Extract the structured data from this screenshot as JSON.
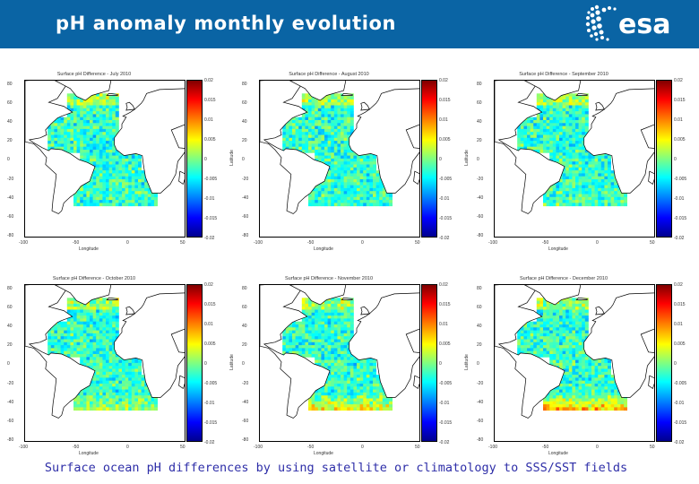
{
  "header": {
    "title": "pH anomaly monthly evolution",
    "logo_text": "esa",
    "background": "#0a64a4"
  },
  "caption": "Surface ocean pH differences by using satellite or climatology to SSS/SST  fields",
  "chart_data": [
    {
      "type": "heatmap",
      "title": "Surface pH Difference - July 2010",
      "xlabel": "Longitude",
      "ylabel": "Latitude",
      "xticks": [
        "-100",
        "-50",
        "0",
        "50"
      ],
      "yticks": [
        "80",
        "60",
        "40",
        "20",
        "0",
        "-20",
        "-40",
        "-60",
        "-80"
      ],
      "colorbar": {
        "ticks": [
          "0.02",
          "0.015",
          "0.01",
          "0.005",
          "0",
          "-0.005",
          "-0.01",
          "-0.015",
          "-0.02"
        ],
        "range": [
          -0.02,
          0.02
        ],
        "colormap": "jet"
      },
      "mean_anomaly": -0.003,
      "southern_positive_anomaly": 0.0
    },
    {
      "type": "heatmap",
      "title": "Surface pH Difference - August 2010",
      "xlabel": "Longitude",
      "ylabel": "Latitude",
      "xticks": [
        "-100",
        "-50",
        "0",
        "50"
      ],
      "yticks": [
        "80",
        "60",
        "40",
        "20",
        "0",
        "-20",
        "-40",
        "-60",
        "-80"
      ],
      "colorbar": {
        "ticks": [
          "0.02",
          "0.015",
          "0.01",
          "0.005",
          "0",
          "-0.005",
          "-0.01",
          "-0.015",
          "-0.02"
        ],
        "range": [
          -0.02,
          0.02
        ],
        "colormap": "jet"
      },
      "mean_anomaly": -0.003,
      "southern_positive_anomaly": 0.0
    },
    {
      "type": "heatmap",
      "title": "Surface pH Difference - September 2010",
      "xlabel": "Longitude",
      "ylabel": "Latitude",
      "xticks": [
        "-100",
        "-50",
        "0",
        "50"
      ],
      "yticks": [
        "80",
        "60",
        "40",
        "20",
        "0",
        "-20",
        "-40",
        "-60",
        "-80"
      ],
      "colorbar": {
        "ticks": [
          "0.02",
          "0.015",
          "0.01",
          "0.005",
          "0",
          "-0.005",
          "-0.01",
          "-0.015",
          "-0.02"
        ],
        "range": [
          -0.02,
          0.02
        ],
        "colormap": "jet"
      },
      "mean_anomaly": -0.003,
      "southern_positive_anomaly": 0.001
    },
    {
      "type": "heatmap",
      "title": "Surface pH Difference - October 2010",
      "xlabel": "Longitude",
      "ylabel": "Latitude",
      "xticks": [
        "-100",
        "-50",
        "0",
        "50"
      ],
      "yticks": [
        "80",
        "60",
        "40",
        "20",
        "0",
        "-20",
        "-40",
        "-60",
        "-80"
      ],
      "colorbar": {
        "ticks": [
          "0.02",
          "0.015",
          "0.01",
          "0.005",
          "0",
          "-0.005",
          "-0.01",
          "-0.015",
          "-0.02"
        ],
        "range": [
          -0.02,
          0.02
        ],
        "colormap": "jet"
      },
      "mean_anomaly": -0.003,
      "southern_positive_anomaly": 0.005
    },
    {
      "type": "heatmap",
      "title": "Surface pH Difference - November 2010",
      "xlabel": "Longitude",
      "ylabel": "Latitude",
      "xticks": [
        "-100",
        "-50",
        "0",
        "50"
      ],
      "yticks": [
        "80",
        "60",
        "40",
        "20",
        "0",
        "-20",
        "-40",
        "-60",
        "-80"
      ],
      "colorbar": {
        "ticks": [
          "0.02",
          "0.015",
          "0.01",
          "0.005",
          "0",
          "-0.005",
          "-0.01",
          "-0.015",
          "-0.02"
        ],
        "range": [
          -0.02,
          0.02
        ],
        "colormap": "jet"
      },
      "mean_anomaly": -0.003,
      "southern_positive_anomaly": 0.009
    },
    {
      "type": "heatmap",
      "title": "Surface pH Difference - December 2010",
      "xlabel": "Longitude",
      "ylabel": "Latitude",
      "xticks": [
        "-100",
        "-50",
        "0",
        "50"
      ],
      "yticks": [
        "80",
        "60",
        "40",
        "20",
        "0",
        "-20",
        "-40",
        "-60",
        "-80"
      ],
      "colorbar": {
        "ticks": [
          "0.02",
          "0.015",
          "0.01",
          "0.005",
          "0",
          "-0.005",
          "-0.01",
          "-0.015",
          "-0.02"
        ],
        "range": [
          -0.02,
          0.02
        ],
        "colormap": "jet"
      },
      "mean_anomaly": -0.003,
      "southern_positive_anomaly": 0.012
    }
  ]
}
